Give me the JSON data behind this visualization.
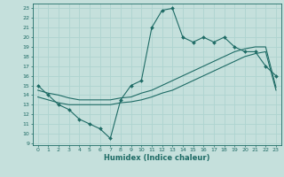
{
  "xlabel": "Humidex (Indice chaleur)",
  "xlim": [
    -0.5,
    23.5
  ],
  "ylim": [
    8.8,
    23.5
  ],
  "yticks": [
    9,
    10,
    11,
    12,
    13,
    14,
    15,
    16,
    17,
    18,
    19,
    20,
    21,
    22,
    23
  ],
  "xticks": [
    0,
    1,
    2,
    3,
    4,
    5,
    6,
    7,
    8,
    9,
    10,
    11,
    12,
    13,
    14,
    15,
    16,
    17,
    18,
    19,
    20,
    21,
    22,
    23
  ],
  "bg_color": "#c5e0dc",
  "line_color": "#1e6b65",
  "grid_color": "#aed4d0",
  "line1_x": [
    0,
    1,
    2,
    3,
    4,
    5,
    6,
    7,
    8,
    9,
    10,
    11,
    12,
    13,
    14,
    15,
    16,
    17,
    18,
    19,
    20,
    21,
    22,
    23
  ],
  "line1_y": [
    15,
    14,
    13,
    12.5,
    11.5,
    11.0,
    10.5,
    9.5,
    13.5,
    15.0,
    15.5,
    21.0,
    22.8,
    23.0,
    20.0,
    19.5,
    20.0,
    19.5,
    20.0,
    19.0,
    18.5,
    18.5,
    17.0,
    16.0
  ],
  "line2_x": [
    0,
    1,
    2,
    3,
    4,
    5,
    6,
    7,
    8,
    9,
    10,
    11,
    12,
    13,
    14,
    15,
    16,
    17,
    18,
    19,
    20,
    21,
    22,
    23
  ],
  "line2_y": [
    13.8,
    13.5,
    13.2,
    13.0,
    13.0,
    13.0,
    13.0,
    13.0,
    13.2,
    13.3,
    13.5,
    13.8,
    14.2,
    14.5,
    15.0,
    15.5,
    16.0,
    16.5,
    17.0,
    17.5,
    18.0,
    18.3,
    18.5,
    14.5
  ],
  "line3_x": [
    0,
    1,
    2,
    3,
    4,
    5,
    6,
    7,
    8,
    9,
    10,
    11,
    12,
    13,
    14,
    15,
    16,
    17,
    18,
    19,
    20,
    21,
    22,
    23
  ],
  "line3_y": [
    14.5,
    14.2,
    14.0,
    13.7,
    13.5,
    13.5,
    13.5,
    13.5,
    13.7,
    13.8,
    14.2,
    14.5,
    15.0,
    15.5,
    16.0,
    16.5,
    17.0,
    17.5,
    18.0,
    18.5,
    18.8,
    19.0,
    19.0,
    14.8
  ]
}
